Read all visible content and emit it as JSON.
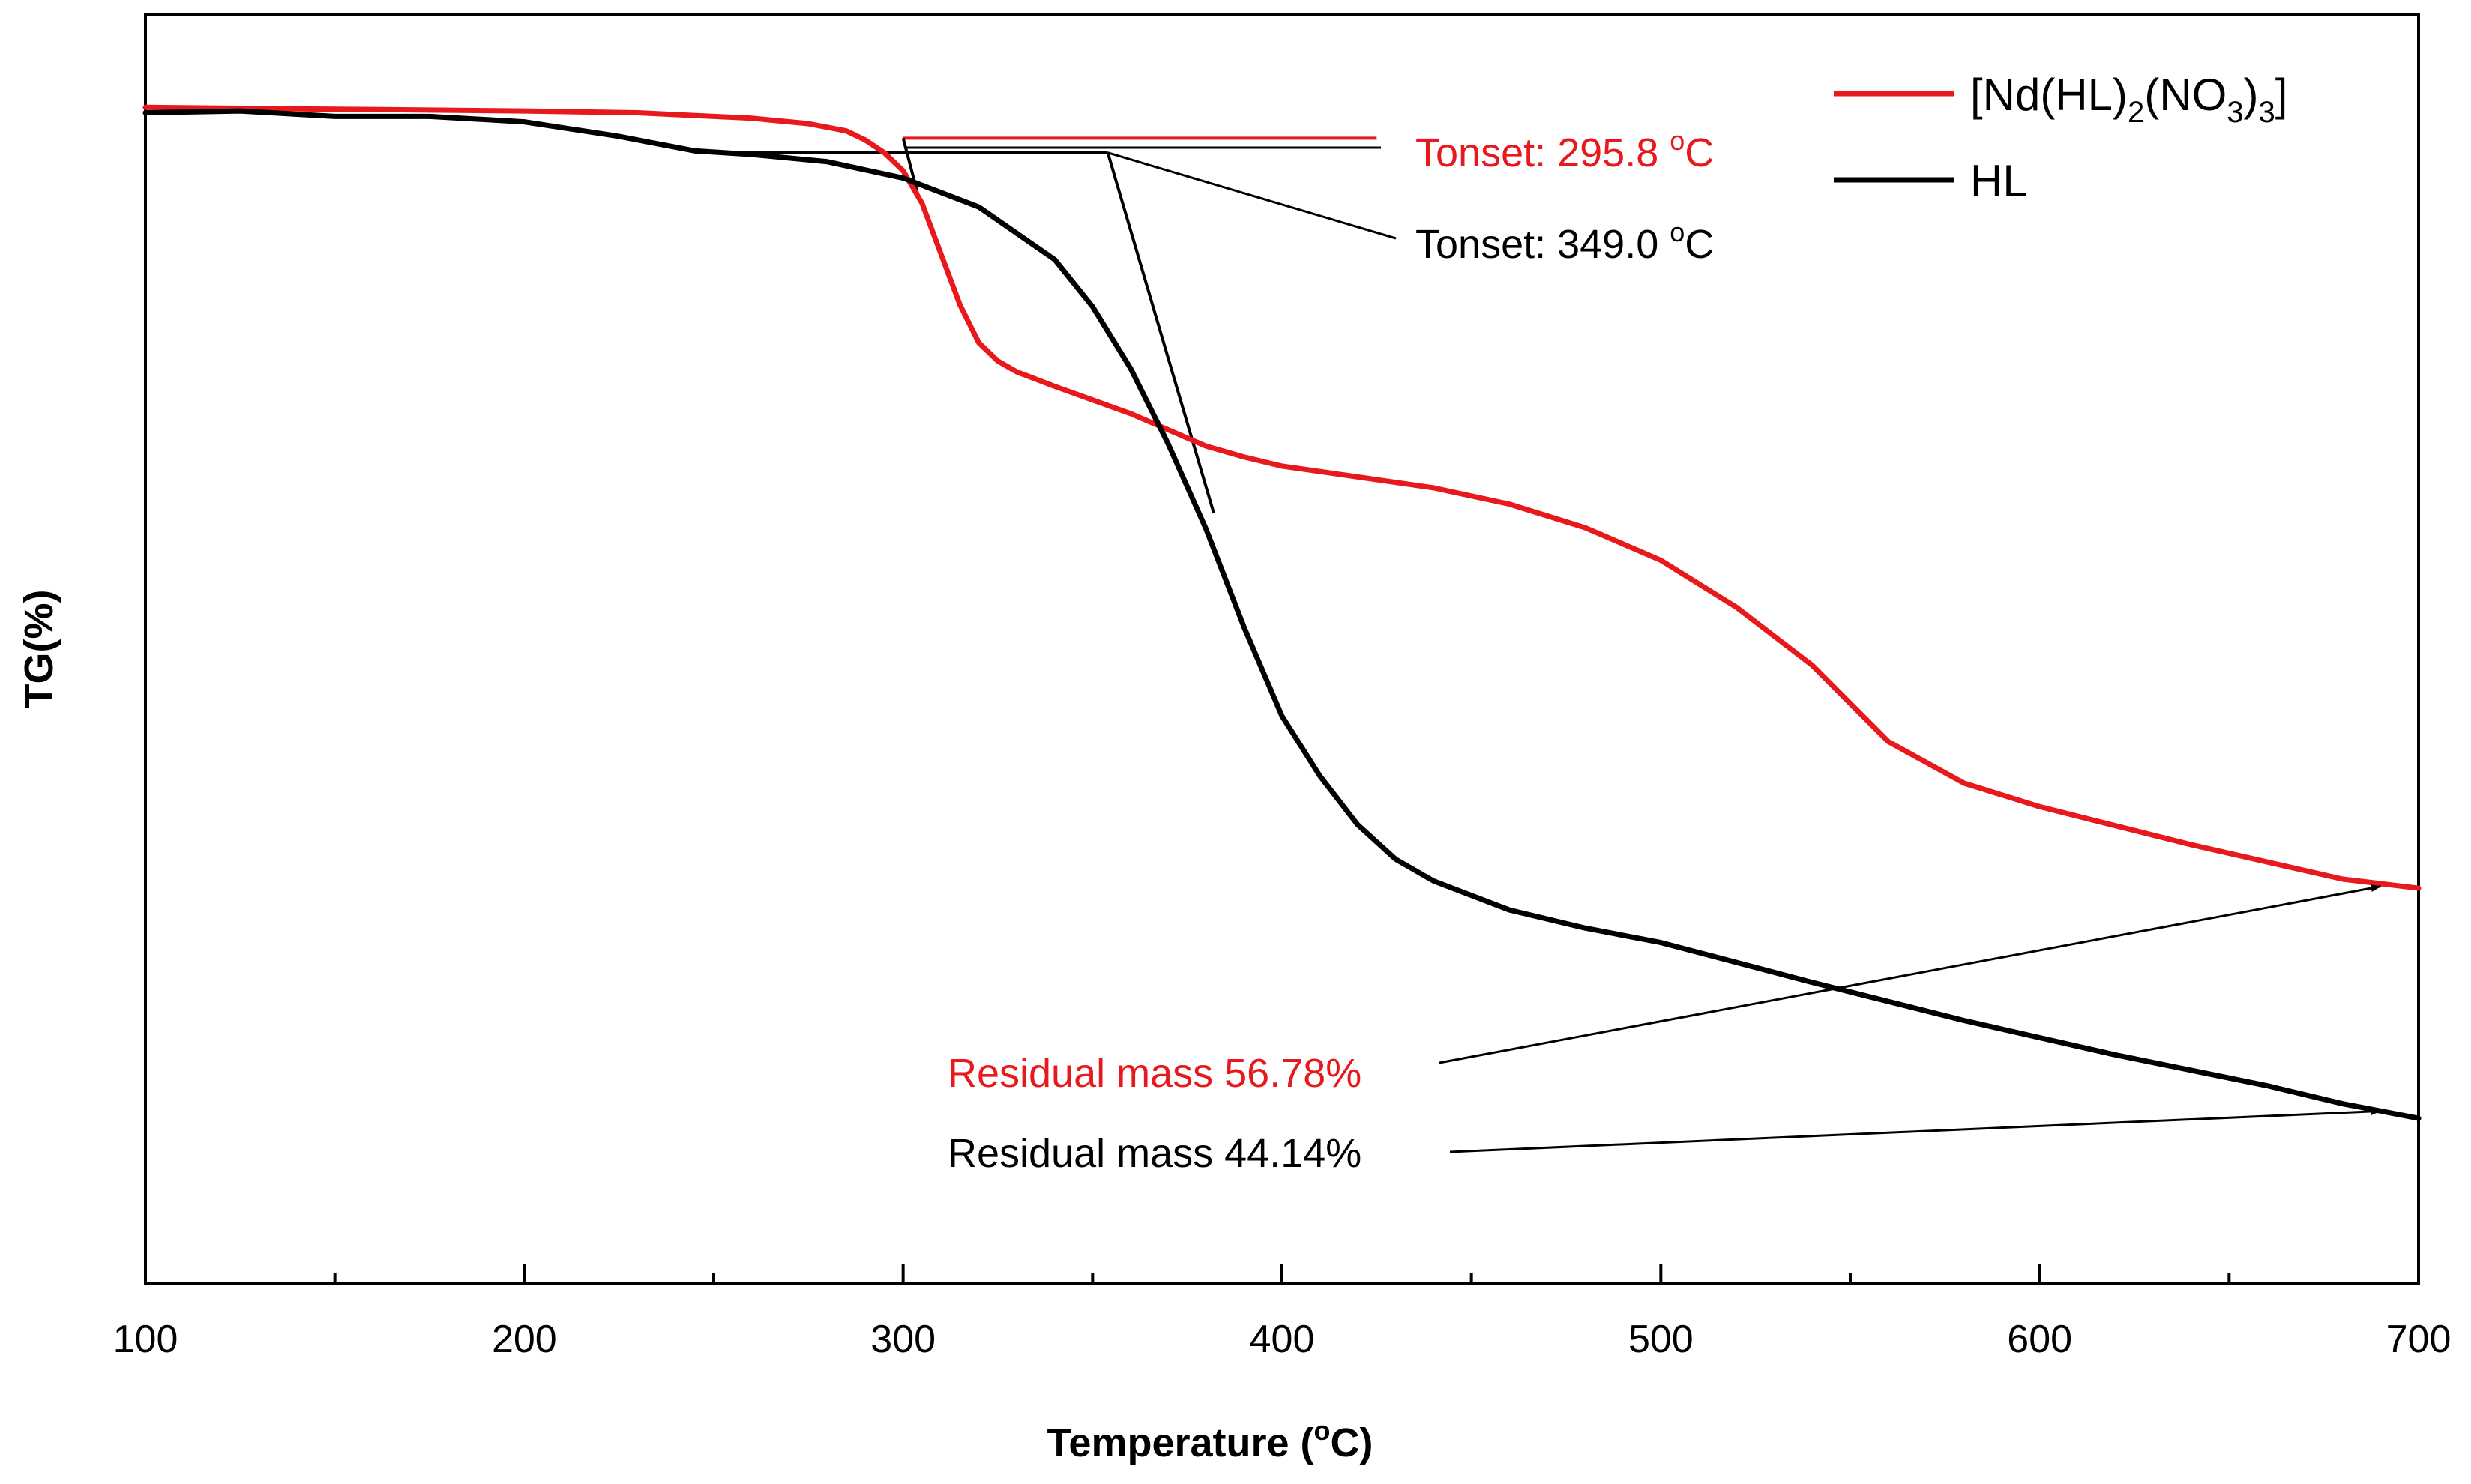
{
  "chart_data": {
    "type": "line",
    "title": "",
    "xlabel": "Temperature (°C)",
    "ylabel": "TG(%)",
    "xlim": [
      100,
      700
    ],
    "ylim": [
      35,
      105
    ],
    "x_ticks": [
      100,
      200,
      300,
      400,
      500,
      600,
      700
    ],
    "x_minor_ticks": [
      150,
      250,
      350,
      450,
      550,
      650
    ],
    "grid": false,
    "y_tick_labels_visible": false,
    "legend_position": "top-right",
    "legend": [
      {
        "label_main": "[Nd(HL)",
        "sub1": "2",
        "mid": "(NO",
        "sub2": "3",
        "mid2": ")",
        "sub3": "3",
        "end": "]",
        "color": "#e8191c"
      },
      {
        "label_main": "HL",
        "color": "#000000"
      }
    ],
    "series": [
      {
        "name": "[Nd(HL)2(NO3)3]",
        "color": "#e8191c",
        "x": [
          100,
          150,
          200,
          230,
          260,
          275,
          285,
          290,
          295,
          300,
          305,
          310,
          315,
          320,
          325,
          330,
          340,
          360,
          380,
          390,
          400,
          420,
          440,
          460,
          480,
          500,
          520,
          540,
          560,
          580,
          600,
          640,
          680,
          700
        ],
        "y": [
          99.9,
          99.8,
          99.7,
          99.6,
          99.3,
          99.0,
          98.6,
          98.1,
          97.4,
          96.4,
          94.6,
          91.8,
          89.0,
          86.9,
          85.9,
          85.3,
          84.5,
          83.0,
          81.2,
          80.6,
          80.1,
          79.5,
          78.9,
          78.0,
          76.7,
          74.9,
          72.3,
          69.1,
          64.9,
          62.6,
          61.3,
          59.2,
          57.3,
          56.8
        ]
      },
      {
        "name": "HL",
        "color": "#000000",
        "x": [
          100,
          125,
          150,
          175,
          200,
          225,
          245,
          260,
          280,
          300,
          320,
          340,
          350,
          360,
          370,
          380,
          390,
          400,
          410,
          420,
          430,
          440,
          460,
          480,
          500,
          540,
          580,
          620,
          660,
          680,
          690,
          700
        ],
        "y": [
          99.6,
          99.7,
          99.4,
          99.4,
          99.1,
          98.3,
          97.5,
          97.3,
          96.9,
          96.0,
          94.4,
          91.5,
          88.9,
          85.5,
          81.3,
          76.6,
          71.2,
          66.3,
          63.0,
          60.3,
          58.4,
          57.2,
          55.6,
          54.6,
          53.8,
          51.6,
          49.5,
          47.6,
          45.9,
          44.9,
          44.5,
          44.1
        ]
      }
    ],
    "annotations": {
      "tonset_nd": {
        "label": "Tonset: 295.8 °C",
        "color": "#e8191c"
      },
      "tonset_hl": {
        "label": "Tonset: 349.0 °C",
        "color": "#000000"
      },
      "residual_nd": {
        "label": "Residual mass 56.78%",
        "color": "#e8191c"
      },
      "residual_hl": {
        "label": "Residual mass 44.14%",
        "color": "#000000"
      }
    }
  }
}
